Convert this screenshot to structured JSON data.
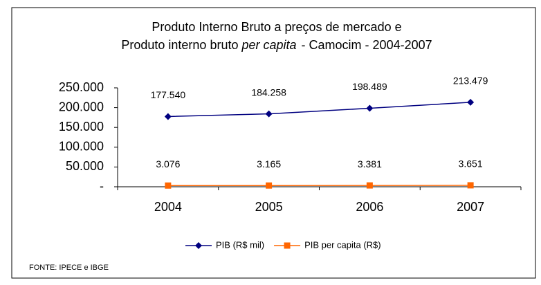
{
  "chart_data": {
    "type": "line",
    "title": {
      "line1": "Produto Interno Bruto a preços de mercado  e",
      "line2": [
        "Produto interno bruto",
        "per capita",
        "- Camocim - 2004-2007"
      ]
    },
    "categories": [
      "2004",
      "2005",
      "2006",
      "2007"
    ],
    "series": [
      {
        "name": "PIB (R$ mil)",
        "color": "#000080",
        "marker": "diamond",
        "values": [
          177540,
          184258,
          198489,
          213479
        ],
        "value_labels": [
          "177.540",
          "184.258",
          "198.489",
          "213.479"
        ]
      },
      {
        "name": "PIB per capita (R$)",
        "color": "#ff6600",
        "marker": "square",
        "values": [
          3076,
          3165,
          3381,
          3651
        ],
        "value_labels": [
          "3.076",
          "3.165",
          "3.381",
          "3.651"
        ]
      }
    ],
    "ylim": [
      0,
      250000
    ],
    "yticks": [
      {
        "value": 0,
        "label": "-"
      },
      {
        "value": 50000,
        "label": "50.000"
      },
      {
        "value": 100000,
        "label": "100.000"
      },
      {
        "value": 150000,
        "label": "150.000"
      },
      {
        "value": 200000,
        "label": "200.000"
      },
      {
        "value": 250000,
        "label": "250.000"
      }
    ],
    "legend": "bottom",
    "source": "FONTE: IPECE e IBGE"
  }
}
